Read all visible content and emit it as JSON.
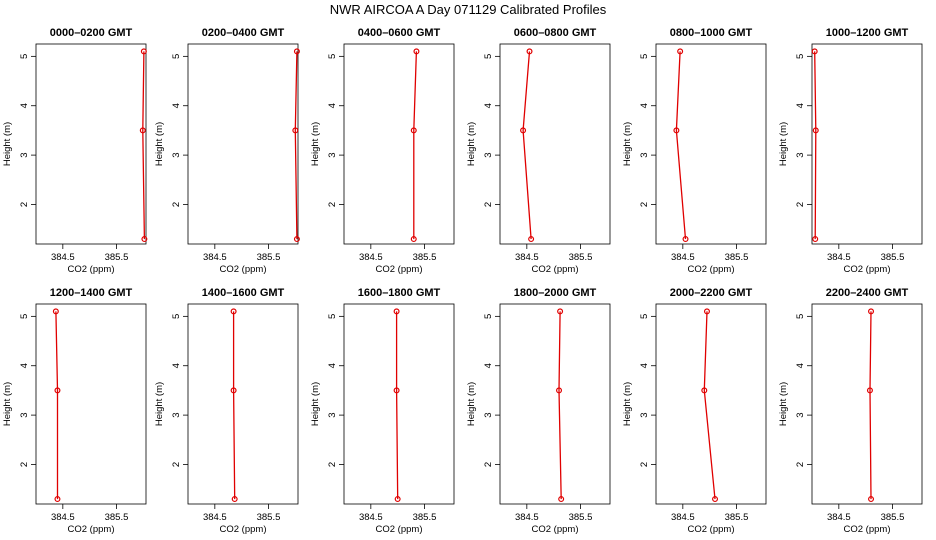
{
  "figure": {
    "title": "NWR AIRCOA A  Day 071129  Calibrated Profiles"
  },
  "colors": {
    "profile": "#e00000",
    "axis": "#000000"
  },
  "chart_data": [
    {
      "type": "line",
      "title": "0000–0200 GMT",
      "xlabel": "CO2 (ppm)",
      "ylabel": "Height (m)",
      "xlim": [
        384.0,
        386.05
      ],
      "ylim": [
        1.2,
        5.25
      ],
      "xticks": [
        384.5,
        385.5
      ],
      "xticklabels": [
        "384.5",
        "385.5"
      ],
      "yticks": [
        2,
        3,
        4,
        5
      ],
      "series": [
        {
          "x": [
            386.01,
            385.99,
            386.02
          ],
          "y": [
            5.1,
            3.5,
            1.3
          ]
        }
      ]
    },
    {
      "type": "line",
      "title": "0200–0400 GMT",
      "xlabel": "CO2 (ppm)",
      "ylabel": "Height (m)",
      "xlim": [
        384.0,
        386.05
      ],
      "ylim": [
        1.2,
        5.25
      ],
      "xticks": [
        384.5,
        385.5
      ],
      "xticklabels": [
        "384.5",
        "385.5"
      ],
      "yticks": [
        2,
        3,
        4,
        5
      ],
      "series": [
        {
          "x": [
            386.03,
            386.0,
            386.03
          ],
          "y": [
            5.1,
            3.5,
            1.3
          ]
        }
      ]
    },
    {
      "type": "line",
      "title": "0400–0600 GMT",
      "xlabel": "CO2 (ppm)",
      "ylabel": "Height (m)",
      "xlim": [
        384.0,
        386.05
      ],
      "ylim": [
        1.2,
        5.25
      ],
      "xticks": [
        384.5,
        385.5
      ],
      "xticklabels": [
        "384.5",
        "385.5"
      ],
      "yticks": [
        2,
        3,
        4,
        5
      ],
      "series": [
        {
          "x": [
            385.35,
            385.3,
            385.3
          ],
          "y": [
            5.1,
            3.5,
            1.3
          ]
        }
      ]
    },
    {
      "type": "line",
      "title": "0600–0800 GMT",
      "xlabel": "CO2 (ppm)",
      "ylabel": "Height (m)",
      "xlim": [
        384.0,
        386.05
      ],
      "ylim": [
        1.2,
        5.25
      ],
      "xticks": [
        384.5,
        385.5
      ],
      "xticklabels": [
        "384.5",
        "385.5"
      ],
      "yticks": [
        2,
        3,
        4,
        5
      ],
      "series": [
        {
          "x": [
            384.55,
            384.43,
            384.58
          ],
          "y": [
            5.1,
            3.5,
            1.3
          ]
        }
      ]
    },
    {
      "type": "line",
      "title": "0800–1000 GMT",
      "xlabel": "CO2 (ppm)",
      "ylabel": "Height (m)",
      "xlim": [
        384.0,
        386.05
      ],
      "ylim": [
        1.2,
        5.25
      ],
      "xticks": [
        384.5,
        385.5
      ],
      "xticklabels": [
        "384.5",
        "385.5"
      ],
      "yticks": [
        2,
        3,
        4,
        5
      ],
      "series": [
        {
          "x": [
            384.45,
            384.38,
            384.55
          ],
          "y": [
            5.1,
            3.5,
            1.3
          ]
        }
      ]
    },
    {
      "type": "line",
      "title": "1000–1200 GMT",
      "xlabel": "CO2 (ppm)",
      "ylabel": "Height (m)",
      "xlim": [
        384.0,
        386.05
      ],
      "ylim": [
        1.2,
        5.25
      ],
      "xticks": [
        384.5,
        385.5
      ],
      "xticklabels": [
        "384.5",
        "385.5"
      ],
      "yticks": [
        2,
        3,
        4,
        5
      ],
      "series": [
        {
          "x": [
            384.05,
            384.07,
            384.06
          ],
          "y": [
            5.1,
            3.5,
            1.3
          ]
        }
      ]
    },
    {
      "type": "line",
      "title": "1200–1400 GMT",
      "xlabel": "CO2 (ppm)",
      "ylabel": "Height (m)",
      "xlim": [
        384.0,
        386.05
      ],
      "ylim": [
        1.2,
        5.25
      ],
      "xticks": [
        384.5,
        385.5
      ],
      "xticklabels": [
        "384.5",
        "385.5"
      ],
      "yticks": [
        2,
        3,
        4,
        5
      ],
      "series": [
        {
          "x": [
            384.37,
            384.4,
            384.4
          ],
          "y": [
            5.1,
            3.5,
            1.3
          ]
        }
      ]
    },
    {
      "type": "line",
      "title": "1400–1600 GMT",
      "xlabel": "CO2 (ppm)",
      "ylabel": "Height (m)",
      "xlim": [
        384.0,
        386.05
      ],
      "ylim": [
        1.2,
        5.25
      ],
      "xticks": [
        384.5,
        385.5
      ],
      "xticklabels": [
        "384.5",
        "385.5"
      ],
      "yticks": [
        2,
        3,
        4,
        5
      ],
      "series": [
        {
          "x": [
            384.85,
            384.85,
            384.87
          ],
          "y": [
            5.1,
            3.5,
            1.3
          ]
        }
      ]
    },
    {
      "type": "line",
      "title": "1600–1800 GMT",
      "xlabel": "CO2 (ppm)",
      "ylabel": "Height (m)",
      "xlim": [
        384.0,
        386.05
      ],
      "ylim": [
        1.2,
        5.25
      ],
      "xticks": [
        384.5,
        385.5
      ],
      "xticklabels": [
        "384.5",
        "385.5"
      ],
      "yticks": [
        2,
        3,
        4,
        5
      ],
      "series": [
        {
          "x": [
            384.98,
            384.98,
            385.0
          ],
          "y": [
            5.1,
            3.5,
            1.3
          ]
        }
      ]
    },
    {
      "type": "line",
      "title": "1800–2000 GMT",
      "xlabel": "CO2 (ppm)",
      "ylabel": "Height (m)",
      "xlim": [
        384.0,
        386.05
      ],
      "ylim": [
        1.2,
        5.25
      ],
      "xticks": [
        384.5,
        385.5
      ],
      "xticklabels": [
        "384.5",
        "385.5"
      ],
      "yticks": [
        2,
        3,
        4,
        5
      ],
      "series": [
        {
          "x": [
            385.12,
            385.1,
            385.14
          ],
          "y": [
            5.1,
            3.5,
            1.3
          ]
        }
      ]
    },
    {
      "type": "line",
      "title": "2000–2200 GMT",
      "xlabel": "CO2 (ppm)",
      "ylabel": "Height (m)",
      "xlim": [
        384.0,
        386.05
      ],
      "ylim": [
        1.2,
        5.25
      ],
      "xticks": [
        384.5,
        385.5
      ],
      "xticklabels": [
        "384.5",
        "385.5"
      ],
      "yticks": [
        2,
        3,
        4,
        5
      ],
      "series": [
        {
          "x": [
            384.95,
            384.9,
            385.1
          ],
          "y": [
            5.1,
            3.5,
            1.3
          ]
        }
      ]
    },
    {
      "type": "line",
      "title": "2200–2400 GMT",
      "xlabel": "CO2 (ppm)",
      "ylabel": "Height (m)",
      "xlim": [
        384.0,
        386.05
      ],
      "ylim": [
        1.2,
        5.25
      ],
      "xticks": [
        384.5,
        385.5
      ],
      "xticklabels": [
        "384.5",
        "385.5"
      ],
      "yticks": [
        2,
        3,
        4,
        5
      ],
      "series": [
        {
          "x": [
            385.1,
            385.08,
            385.1
          ],
          "y": [
            5.1,
            3.5,
            1.3
          ]
        }
      ]
    }
  ]
}
